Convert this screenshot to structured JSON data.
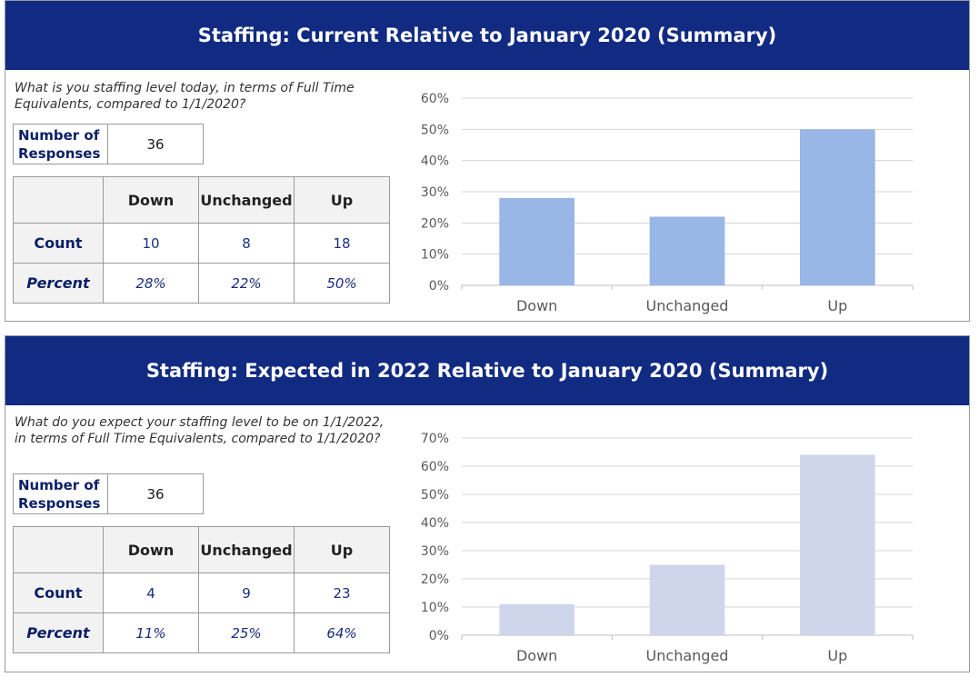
{
  "sections": [
    {
      "title": "Staffing: Current Relative to January 2020 (Summary)",
      "question": "What is you staffing level today, in terms of Full Time Equivalents, compared to 1/1/2020?",
      "responses_label": "Number of Responses",
      "responses_value": "36",
      "table": {
        "headers": [
          "Down",
          "Unchanged",
          "Up"
        ],
        "count_label": "Count",
        "counts": [
          "10",
          "8",
          "18"
        ],
        "percent_label": "Percent",
        "percents": [
          "28%",
          "22%",
          "50%"
        ]
      }
    },
    {
      "title": "Staffing: Expected in 2022 Relative to January 2020 (Summary)",
      "question": "What do you expect your staffing level to be on 1/1/2022, in terms of Full Time Equivalents, compared to 1/1/2020?",
      "responses_label": "Number of Responses",
      "responses_value": "36",
      "table": {
        "headers": [
          "Down",
          "Unchanged",
          "Up"
        ],
        "count_label": "Count",
        "counts": [
          "4",
          "9",
          "23"
        ],
        "percent_label": "Percent",
        "percents": [
          "11%",
          "25%",
          "64%"
        ]
      }
    }
  ],
  "chart_data": [
    {
      "type": "bar",
      "categories": [
        "Down",
        "Unchanged",
        "Up"
      ],
      "values": [
        28,
        22,
        50
      ],
      "ylim": [
        0,
        60
      ],
      "yticks": [
        "0%",
        "10%",
        "20%",
        "30%",
        "40%",
        "50%",
        "60%"
      ],
      "bar_color": "#98b6e6",
      "grid": true,
      "legend": "none"
    },
    {
      "type": "bar",
      "categories": [
        "Down",
        "Unchanged",
        "Up"
      ],
      "values": [
        11,
        25,
        64
      ],
      "ylim": [
        0,
        70
      ],
      "yticks": [
        "0%",
        "10%",
        "20%",
        "30%",
        "40%",
        "50%",
        "60%",
        "70%"
      ],
      "bar_color": "#cfd6ec",
      "grid": true,
      "legend": "none"
    }
  ]
}
